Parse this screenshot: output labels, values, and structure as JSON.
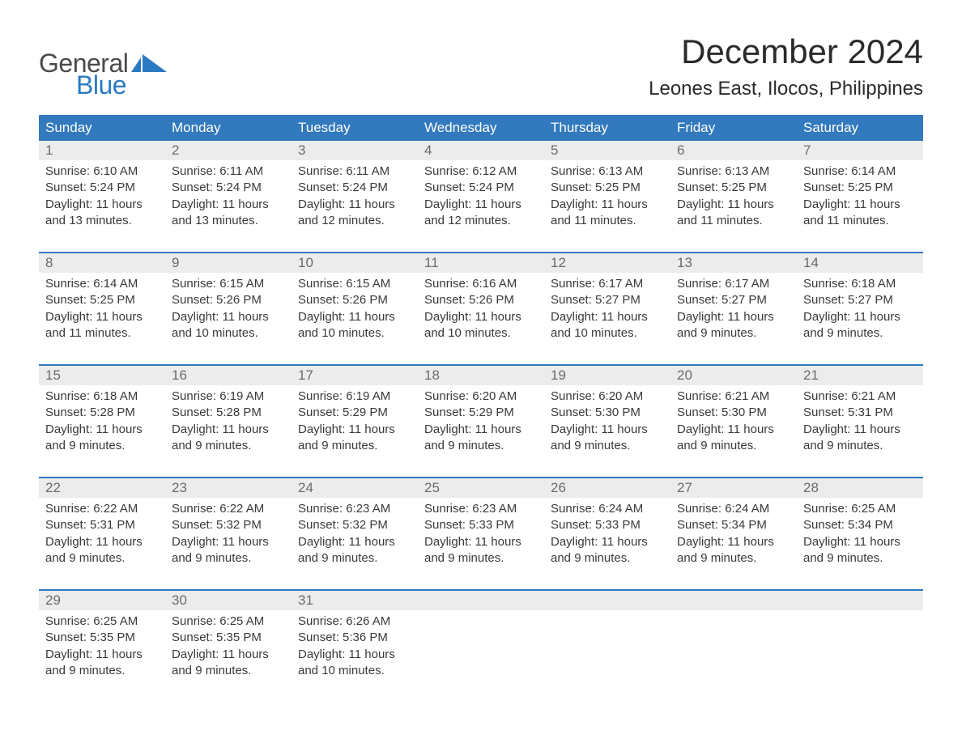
{
  "logo": {
    "line1": "General",
    "line2": "Blue"
  },
  "title": "December 2024",
  "location": "Leones East, Ilocos, Philippines",
  "colors": {
    "header_bg": "#3279bd",
    "header_text": "#ffffff",
    "daynum_bg": "#ececec",
    "daynum_text": "#6b6b6b",
    "body_text": "#3a3a3a",
    "logo_gray": "#4a4a4a",
    "logo_blue": "#2b7ac1",
    "week_border": "#3279bd",
    "background": "#ffffff"
  },
  "weekdays": [
    "Sunday",
    "Monday",
    "Tuesday",
    "Wednesday",
    "Thursday",
    "Friday",
    "Saturday"
  ],
  "weeks": [
    {
      "nums": [
        "1",
        "2",
        "3",
        "4",
        "5",
        "6",
        "7"
      ],
      "cells": [
        {
          "sunrise": "Sunrise: 6:10 AM",
          "sunset": "Sunset: 5:24 PM",
          "day1": "Daylight: 11 hours",
          "day2": "and 13 minutes."
        },
        {
          "sunrise": "Sunrise: 6:11 AM",
          "sunset": "Sunset: 5:24 PM",
          "day1": "Daylight: 11 hours",
          "day2": "and 13 minutes."
        },
        {
          "sunrise": "Sunrise: 6:11 AM",
          "sunset": "Sunset: 5:24 PM",
          "day1": "Daylight: 11 hours",
          "day2": "and 12 minutes."
        },
        {
          "sunrise": "Sunrise: 6:12 AM",
          "sunset": "Sunset: 5:24 PM",
          "day1": "Daylight: 11 hours",
          "day2": "and 12 minutes."
        },
        {
          "sunrise": "Sunrise: 6:13 AM",
          "sunset": "Sunset: 5:25 PM",
          "day1": "Daylight: 11 hours",
          "day2": "and 11 minutes."
        },
        {
          "sunrise": "Sunrise: 6:13 AM",
          "sunset": "Sunset: 5:25 PM",
          "day1": "Daylight: 11 hours",
          "day2": "and 11 minutes."
        },
        {
          "sunrise": "Sunrise: 6:14 AM",
          "sunset": "Sunset: 5:25 PM",
          "day1": "Daylight: 11 hours",
          "day2": "and 11 minutes."
        }
      ]
    },
    {
      "nums": [
        "8",
        "9",
        "10",
        "11",
        "12",
        "13",
        "14"
      ],
      "cells": [
        {
          "sunrise": "Sunrise: 6:14 AM",
          "sunset": "Sunset: 5:25 PM",
          "day1": "Daylight: 11 hours",
          "day2": "and 11 minutes."
        },
        {
          "sunrise": "Sunrise: 6:15 AM",
          "sunset": "Sunset: 5:26 PM",
          "day1": "Daylight: 11 hours",
          "day2": "and 10 minutes."
        },
        {
          "sunrise": "Sunrise: 6:15 AM",
          "sunset": "Sunset: 5:26 PM",
          "day1": "Daylight: 11 hours",
          "day2": "and 10 minutes."
        },
        {
          "sunrise": "Sunrise: 6:16 AM",
          "sunset": "Sunset: 5:26 PM",
          "day1": "Daylight: 11 hours",
          "day2": "and 10 minutes."
        },
        {
          "sunrise": "Sunrise: 6:17 AM",
          "sunset": "Sunset: 5:27 PM",
          "day1": "Daylight: 11 hours",
          "day2": "and 10 minutes."
        },
        {
          "sunrise": "Sunrise: 6:17 AM",
          "sunset": "Sunset: 5:27 PM",
          "day1": "Daylight: 11 hours",
          "day2": "and 9 minutes."
        },
        {
          "sunrise": "Sunrise: 6:18 AM",
          "sunset": "Sunset: 5:27 PM",
          "day1": "Daylight: 11 hours",
          "day2": "and 9 minutes."
        }
      ]
    },
    {
      "nums": [
        "15",
        "16",
        "17",
        "18",
        "19",
        "20",
        "21"
      ],
      "cells": [
        {
          "sunrise": "Sunrise: 6:18 AM",
          "sunset": "Sunset: 5:28 PM",
          "day1": "Daylight: 11 hours",
          "day2": "and 9 minutes."
        },
        {
          "sunrise": "Sunrise: 6:19 AM",
          "sunset": "Sunset: 5:28 PM",
          "day1": "Daylight: 11 hours",
          "day2": "and 9 minutes."
        },
        {
          "sunrise": "Sunrise: 6:19 AM",
          "sunset": "Sunset: 5:29 PM",
          "day1": "Daylight: 11 hours",
          "day2": "and 9 minutes."
        },
        {
          "sunrise": "Sunrise: 6:20 AM",
          "sunset": "Sunset: 5:29 PM",
          "day1": "Daylight: 11 hours",
          "day2": "and 9 minutes."
        },
        {
          "sunrise": "Sunrise: 6:20 AM",
          "sunset": "Sunset: 5:30 PM",
          "day1": "Daylight: 11 hours",
          "day2": "and 9 minutes."
        },
        {
          "sunrise": "Sunrise: 6:21 AM",
          "sunset": "Sunset: 5:30 PM",
          "day1": "Daylight: 11 hours",
          "day2": "and 9 minutes."
        },
        {
          "sunrise": "Sunrise: 6:21 AM",
          "sunset": "Sunset: 5:31 PM",
          "day1": "Daylight: 11 hours",
          "day2": "and 9 minutes."
        }
      ]
    },
    {
      "nums": [
        "22",
        "23",
        "24",
        "25",
        "26",
        "27",
        "28"
      ],
      "cells": [
        {
          "sunrise": "Sunrise: 6:22 AM",
          "sunset": "Sunset: 5:31 PM",
          "day1": "Daylight: 11 hours",
          "day2": "and 9 minutes."
        },
        {
          "sunrise": "Sunrise: 6:22 AM",
          "sunset": "Sunset: 5:32 PM",
          "day1": "Daylight: 11 hours",
          "day2": "and 9 minutes."
        },
        {
          "sunrise": "Sunrise: 6:23 AM",
          "sunset": "Sunset: 5:32 PM",
          "day1": "Daylight: 11 hours",
          "day2": "and 9 minutes."
        },
        {
          "sunrise": "Sunrise: 6:23 AM",
          "sunset": "Sunset: 5:33 PM",
          "day1": "Daylight: 11 hours",
          "day2": "and 9 minutes."
        },
        {
          "sunrise": "Sunrise: 6:24 AM",
          "sunset": "Sunset: 5:33 PM",
          "day1": "Daylight: 11 hours",
          "day2": "and 9 minutes."
        },
        {
          "sunrise": "Sunrise: 6:24 AM",
          "sunset": "Sunset: 5:34 PM",
          "day1": "Daylight: 11 hours",
          "day2": "and 9 minutes."
        },
        {
          "sunrise": "Sunrise: 6:25 AM",
          "sunset": "Sunset: 5:34 PM",
          "day1": "Daylight: 11 hours",
          "day2": "and 9 minutes."
        }
      ]
    },
    {
      "nums": [
        "29",
        "30",
        "31",
        "",
        "",
        "",
        ""
      ],
      "cells": [
        {
          "sunrise": "Sunrise: 6:25 AM",
          "sunset": "Sunset: 5:35 PM",
          "day1": "Daylight: 11 hours",
          "day2": "and 9 minutes."
        },
        {
          "sunrise": "Sunrise: 6:25 AM",
          "sunset": "Sunset: 5:35 PM",
          "day1": "Daylight: 11 hours",
          "day2": "and 9 minutes."
        },
        {
          "sunrise": "Sunrise: 6:26 AM",
          "sunset": "Sunset: 5:36 PM",
          "day1": "Daylight: 11 hours",
          "day2": "and 10 minutes."
        },
        {
          "sunrise": "",
          "sunset": "",
          "day1": "",
          "day2": ""
        },
        {
          "sunrise": "",
          "sunset": "",
          "day1": "",
          "day2": ""
        },
        {
          "sunrise": "",
          "sunset": "",
          "day1": "",
          "day2": ""
        },
        {
          "sunrise": "",
          "sunset": "",
          "day1": "",
          "day2": ""
        }
      ]
    }
  ]
}
